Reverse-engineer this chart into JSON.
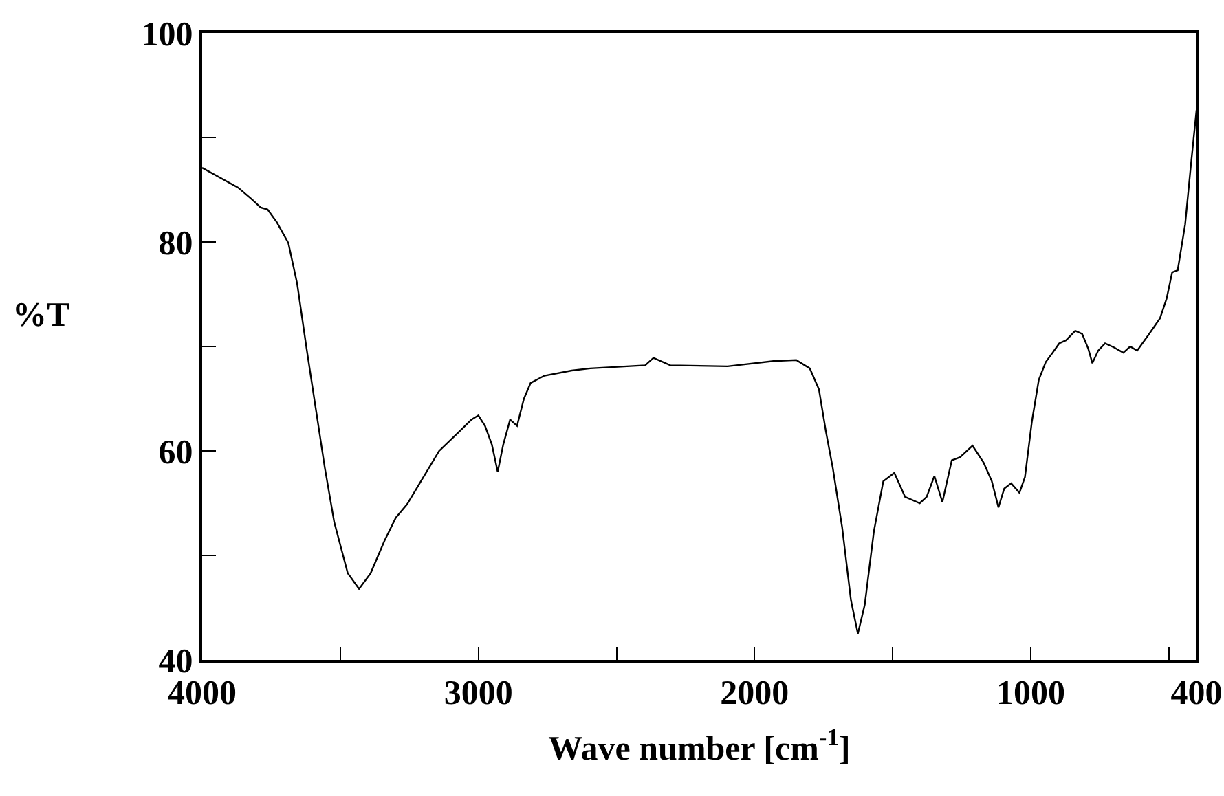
{
  "chart_data": {
    "type": "line",
    "xlabel": "Wave number [cm$^{-1}$]",
    "ylabel": "%T",
    "x": [
      4000,
      3870,
      3821,
      3788,
      3763,
      3730,
      3688,
      3656,
      3622,
      3589,
      3556,
      3522,
      3473,
      3432,
      3390,
      3340,
      3299,
      3258,
      3208,
      3142,
      3075,
      3025,
      3000,
      2976,
      2951,
      2930,
      2910,
      2885,
      2860,
      2835,
      2811,
      2761,
      2662,
      2595,
      2396,
      2366,
      2305,
      2098,
      1932,
      1849,
      1800,
      1767,
      1742,
      1717,
      1683,
      1651,
      1626,
      1601,
      1568,
      1534,
      1494,
      1455,
      1402,
      1377,
      1349,
      1320,
      1286,
      1256,
      1211,
      1171,
      1141,
      1117,
      1096,
      1071,
      1041,
      1021,
      996,
      971,
      946,
      921,
      897,
      872,
      839,
      814,
      792,
      777,
      756,
      731,
      698,
      665,
      640,
      615,
      574,
      532,
      508,
      488,
      468,
      441,
      420,
      400
    ],
    "series": [
      {
        "color": "#000000",
        "values": [
          87.1,
          85.2,
          84.1,
          83.3,
          83.1,
          81.9,
          79.9,
          76.0,
          69.8,
          64.1,
          58.4,
          53.2,
          48.3,
          46.8,
          48.3,
          51.4,
          53.6,
          54.9,
          57.1,
          60.0,
          61.7,
          63.0,
          63.4,
          62.4,
          60.6,
          58.0,
          60.6,
          63.0,
          62.4,
          65.0,
          66.5,
          67.2,
          67.7,
          67.9,
          68.2,
          68.9,
          68.2,
          68.1,
          68.6,
          68.7,
          67.9,
          65.9,
          61.9,
          58.4,
          52.7,
          45.7,
          42.5,
          45.3,
          52.3,
          57.1,
          57.9,
          55.6,
          55.0,
          55.6,
          57.6,
          55.1,
          59.1,
          59.4,
          60.5,
          58.9,
          57.1,
          54.6,
          56.4,
          56.9,
          56.0,
          57.5,
          62.8,
          66.8,
          68.5,
          69.4,
          70.3,
          70.6,
          71.5,
          71.2,
          69.8,
          68.4,
          69.6,
          70.3,
          69.9,
          69.4,
          70.0,
          69.6,
          71.1,
          72.7,
          74.6,
          77.1,
          77.3,
          81.7,
          87.4,
          92.6
        ]
      }
    ],
    "xlim": [
      4000,
      400
    ],
    "xticks": [
      4000,
      {
        "value": 3500,
        "label": null
      },
      3000,
      {
        "value": 2500,
        "label": null
      },
      2000,
      {
        "value": 1500,
        "label": null
      },
      1000,
      {
        "value": 500,
        "label": null
      },
      400
    ],
    "ylim": [
      40,
      100
    ],
    "yticks": [
      40,
      {
        "value": 50,
        "label": null
      },
      60,
      {
        "value": 70,
        "label": null
      },
      80,
      {
        "value": 90,
        "label": null
      },
      100
    ],
    "grid": false,
    "marker": "none",
    "line_style": "solid"
  }
}
